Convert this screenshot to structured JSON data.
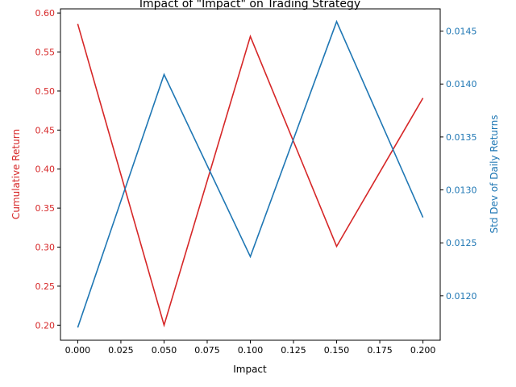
{
  "chart_data": {
    "type": "line",
    "title": "Impact of \"Impact\" on Trading Strategy",
    "xlabel": "Impact",
    "ylabel_left": "Cumulative Return",
    "ylabel_right": "Std Dev of Daily Returns",
    "x": [
      0.0,
      0.05,
      0.1,
      0.15,
      0.2
    ],
    "series": [
      {
        "axis": "left",
        "color": "#d62728",
        "values": [
          0.586,
          0.2,
          0.57,
          0.301,
          0.491
        ]
      },
      {
        "axis": "right",
        "color": "#1f77b4",
        "values": [
          0.0117,
          0.01409,
          0.01237,
          0.01459,
          0.01274
        ]
      }
    ],
    "xlim": [
      -0.01,
      0.21
    ],
    "ylim_left": [
      0.1807,
      0.6053
    ],
    "ylim_right": [
      0.01158,
      0.01471
    ],
    "x_ticks": [
      0.0,
      0.025,
      0.05,
      0.075,
      0.1,
      0.125,
      0.15,
      0.175,
      0.2
    ],
    "x_tick_labels": [
      "0.000",
      "0.025",
      "0.050",
      "0.075",
      "0.100",
      "0.125",
      "0.150",
      "0.175",
      "0.200"
    ],
    "y_left_ticks": [
      0.2,
      0.25,
      0.3,
      0.35,
      0.4,
      0.45,
      0.5,
      0.55,
      0.6
    ],
    "y_left_tick_labels": [
      "0.20",
      "0.25",
      "0.30",
      "0.35",
      "0.40",
      "0.45",
      "0.50",
      "0.55",
      "0.60"
    ],
    "y_right_ticks": [
      0.012,
      0.0125,
      0.013,
      0.0135,
      0.014,
      0.0145
    ],
    "y_right_tick_labels": [
      "0.0120",
      "0.0125",
      "0.0130",
      "0.0135",
      "0.0140",
      "0.0145"
    ],
    "grid": false,
    "legend": false,
    "colors": {
      "left_axis": "#d62728",
      "right_axis": "#1f77b4",
      "axes": "#000000"
    }
  }
}
